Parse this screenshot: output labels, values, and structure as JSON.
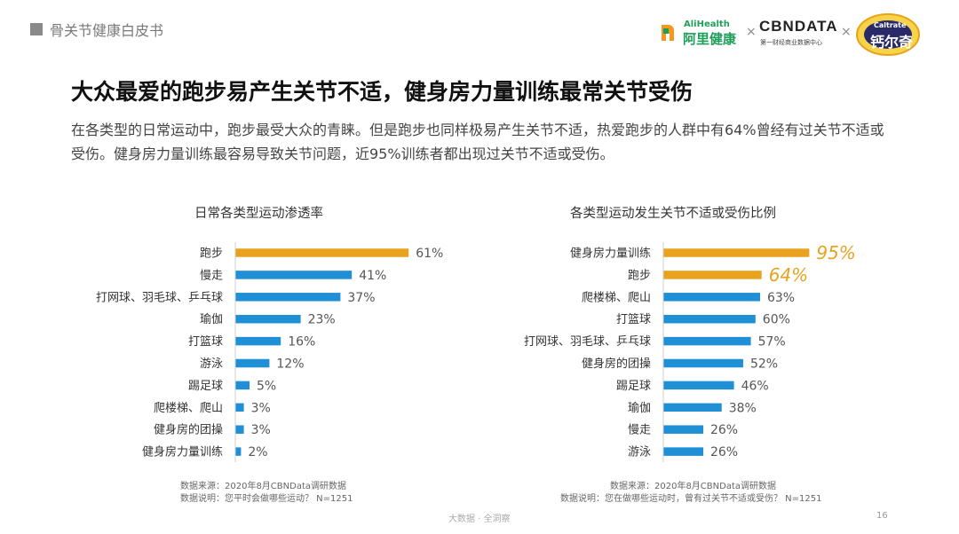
{
  "header": {
    "report_title": "骨关节健康白皮书",
    "logos": {
      "alihealth_en": "AliHealth",
      "alihealth_cn": "阿里健康",
      "times": "×",
      "cbndata_name": "CBNDATA",
      "cbndata_sub": "第一财经商业数据中心",
      "caltrate_en": "Caltrate",
      "caltrate_cn": "钙尔奇"
    }
  },
  "headline": "大众最爱的跑步易产生关节不适，健身房力量训练最常关节受伤",
  "description": "在各类型的日常运动中，跑步最受大众的青睐。但是跑步也同样极易产生关节不适，热爱跑步的人群中有64%曾经有过关节不适或受伤。健身房力量训练最容易导致关节问题，近95%训练者都出现过关节不适或受伤。",
  "colors": {
    "highlight": "#e8a21e",
    "bar": "#1f8fd6"
  },
  "chart_data": [
    {
      "type": "bar",
      "orientation": "horizontal",
      "title": "日常各类型运动渗透率",
      "categories": [
        "跑步",
        "慢走",
        "打网球、羽毛球、乒乓球",
        "瑜伽",
        "打篮球",
        "游泳",
        "踢足球",
        "爬楼梯、爬山",
        "健身房的团操",
        "健身房力量训练"
      ],
      "values": [
        61,
        41,
        37,
        23,
        16,
        12,
        5,
        3,
        3,
        2
      ],
      "value_labels": [
        "61%",
        "41%",
        "37%",
        "23%",
        "16%",
        "12%",
        "5%",
        "3%",
        "3%",
        "2%"
      ],
      "highlight_index": [
        0
      ],
      "unit": "%",
      "xlim": [
        0,
        100
      ],
      "source_note": "数据来源：2020年8月CBNData调研数据",
      "explain_note": "数据说明：您平时会做哪些运动？ N=1251"
    },
    {
      "type": "bar",
      "orientation": "horizontal",
      "title": "各类型运动发生关节不适或受伤比例",
      "categories": [
        "健身房力量训练",
        "跑步",
        "爬楼梯、爬山",
        "打篮球",
        "打网球、羽毛球、乒乓球",
        "健身房的团操",
        "踢足球",
        "瑜伽",
        "慢走",
        "游泳"
      ],
      "values": [
        95,
        64,
        63,
        60,
        57,
        52,
        46,
        38,
        26,
        26
      ],
      "value_labels": [
        "95%",
        "64%",
        "63%",
        "60%",
        "57%",
        "52%",
        "46%",
        "38%",
        "26%",
        "26%"
      ],
      "highlight_index": [
        0,
        1
      ],
      "unit": "%",
      "xlim": [
        0,
        100
      ],
      "source_note": "数据来源：2020年8月CBNData调研数据",
      "explain_note": "数据说明：您在做哪些运动时，曾有过关节不适或受伤？ N=1251"
    }
  ],
  "footer": {
    "brand": "大数据 · 全洞察",
    "page_number": "16"
  }
}
